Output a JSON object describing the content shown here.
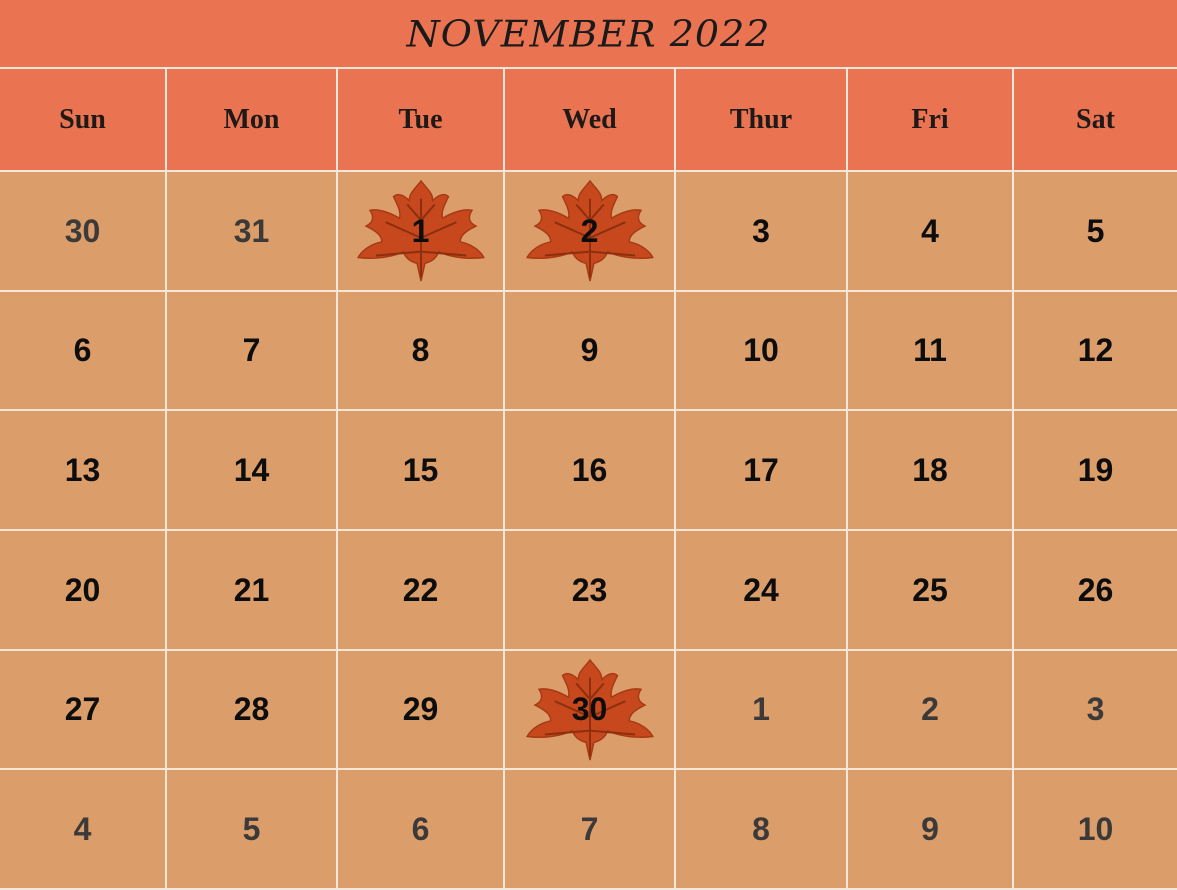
{
  "calendar": {
    "title": "NOVEMBER 2022",
    "weekdays": [
      "Sun",
      "Mon",
      "Tue",
      "Wed",
      "Thur",
      "Fri",
      "Sat"
    ],
    "weeks": [
      [
        {
          "day": "30",
          "in_month": false,
          "leaf": false
        },
        {
          "day": "31",
          "in_month": false,
          "leaf": false
        },
        {
          "day": "1",
          "in_month": true,
          "leaf": true
        },
        {
          "day": "2",
          "in_month": true,
          "leaf": true
        },
        {
          "day": "3",
          "in_month": true,
          "leaf": false
        },
        {
          "day": "4",
          "in_month": true,
          "leaf": false
        },
        {
          "day": "5",
          "in_month": true,
          "leaf": false
        }
      ],
      [
        {
          "day": "6",
          "in_month": true,
          "leaf": false
        },
        {
          "day": "7",
          "in_month": true,
          "leaf": false
        },
        {
          "day": "8",
          "in_month": true,
          "leaf": false
        },
        {
          "day": "9",
          "in_month": true,
          "leaf": false
        },
        {
          "day": "10",
          "in_month": true,
          "leaf": false
        },
        {
          "day": "11",
          "in_month": true,
          "leaf": false
        },
        {
          "day": "12",
          "in_month": true,
          "leaf": false
        }
      ],
      [
        {
          "day": "13",
          "in_month": true,
          "leaf": false
        },
        {
          "day": "14",
          "in_month": true,
          "leaf": false
        },
        {
          "day": "15",
          "in_month": true,
          "leaf": false
        },
        {
          "day": "16",
          "in_month": true,
          "leaf": false
        },
        {
          "day": "17",
          "in_month": true,
          "leaf": false
        },
        {
          "day": "18",
          "in_month": true,
          "leaf": false
        },
        {
          "day": "19",
          "in_month": true,
          "leaf": false
        }
      ],
      [
        {
          "day": "20",
          "in_month": true,
          "leaf": false
        },
        {
          "day": "21",
          "in_month": true,
          "leaf": false
        },
        {
          "day": "22",
          "in_month": true,
          "leaf": false
        },
        {
          "day": "23",
          "in_month": true,
          "leaf": false
        },
        {
          "day": "24",
          "in_month": true,
          "leaf": false
        },
        {
          "day": "25",
          "in_month": true,
          "leaf": false
        },
        {
          "day": "26",
          "in_month": true,
          "leaf": false
        }
      ],
      [
        {
          "day": "27",
          "in_month": true,
          "leaf": false
        },
        {
          "day": "28",
          "in_month": true,
          "leaf": false
        },
        {
          "day": "29",
          "in_month": true,
          "leaf": false
        },
        {
          "day": "30",
          "in_month": true,
          "leaf": true
        },
        {
          "day": "1",
          "in_month": false,
          "leaf": false
        },
        {
          "day": "2",
          "in_month": false,
          "leaf": false
        },
        {
          "day": "3",
          "in_month": false,
          "leaf": false
        }
      ],
      [
        {
          "day": "4",
          "in_month": false,
          "leaf": false
        },
        {
          "day": "5",
          "in_month": false,
          "leaf": false
        },
        {
          "day": "6",
          "in_month": false,
          "leaf": false
        },
        {
          "day": "7",
          "in_month": false,
          "leaf": false
        },
        {
          "day": "8",
          "in_month": false,
          "leaf": false
        },
        {
          "day": "9",
          "in_month": false,
          "leaf": false
        },
        {
          "day": "10",
          "in_month": false,
          "leaf": false
        }
      ]
    ]
  },
  "colors": {
    "header_bg": "#ea7451",
    "cell_bg": "#db9e6b",
    "grid_line": "#f6e7d8",
    "leaf": "#c7481c"
  },
  "icons": {
    "decoration": "maple-leaf-icon"
  }
}
